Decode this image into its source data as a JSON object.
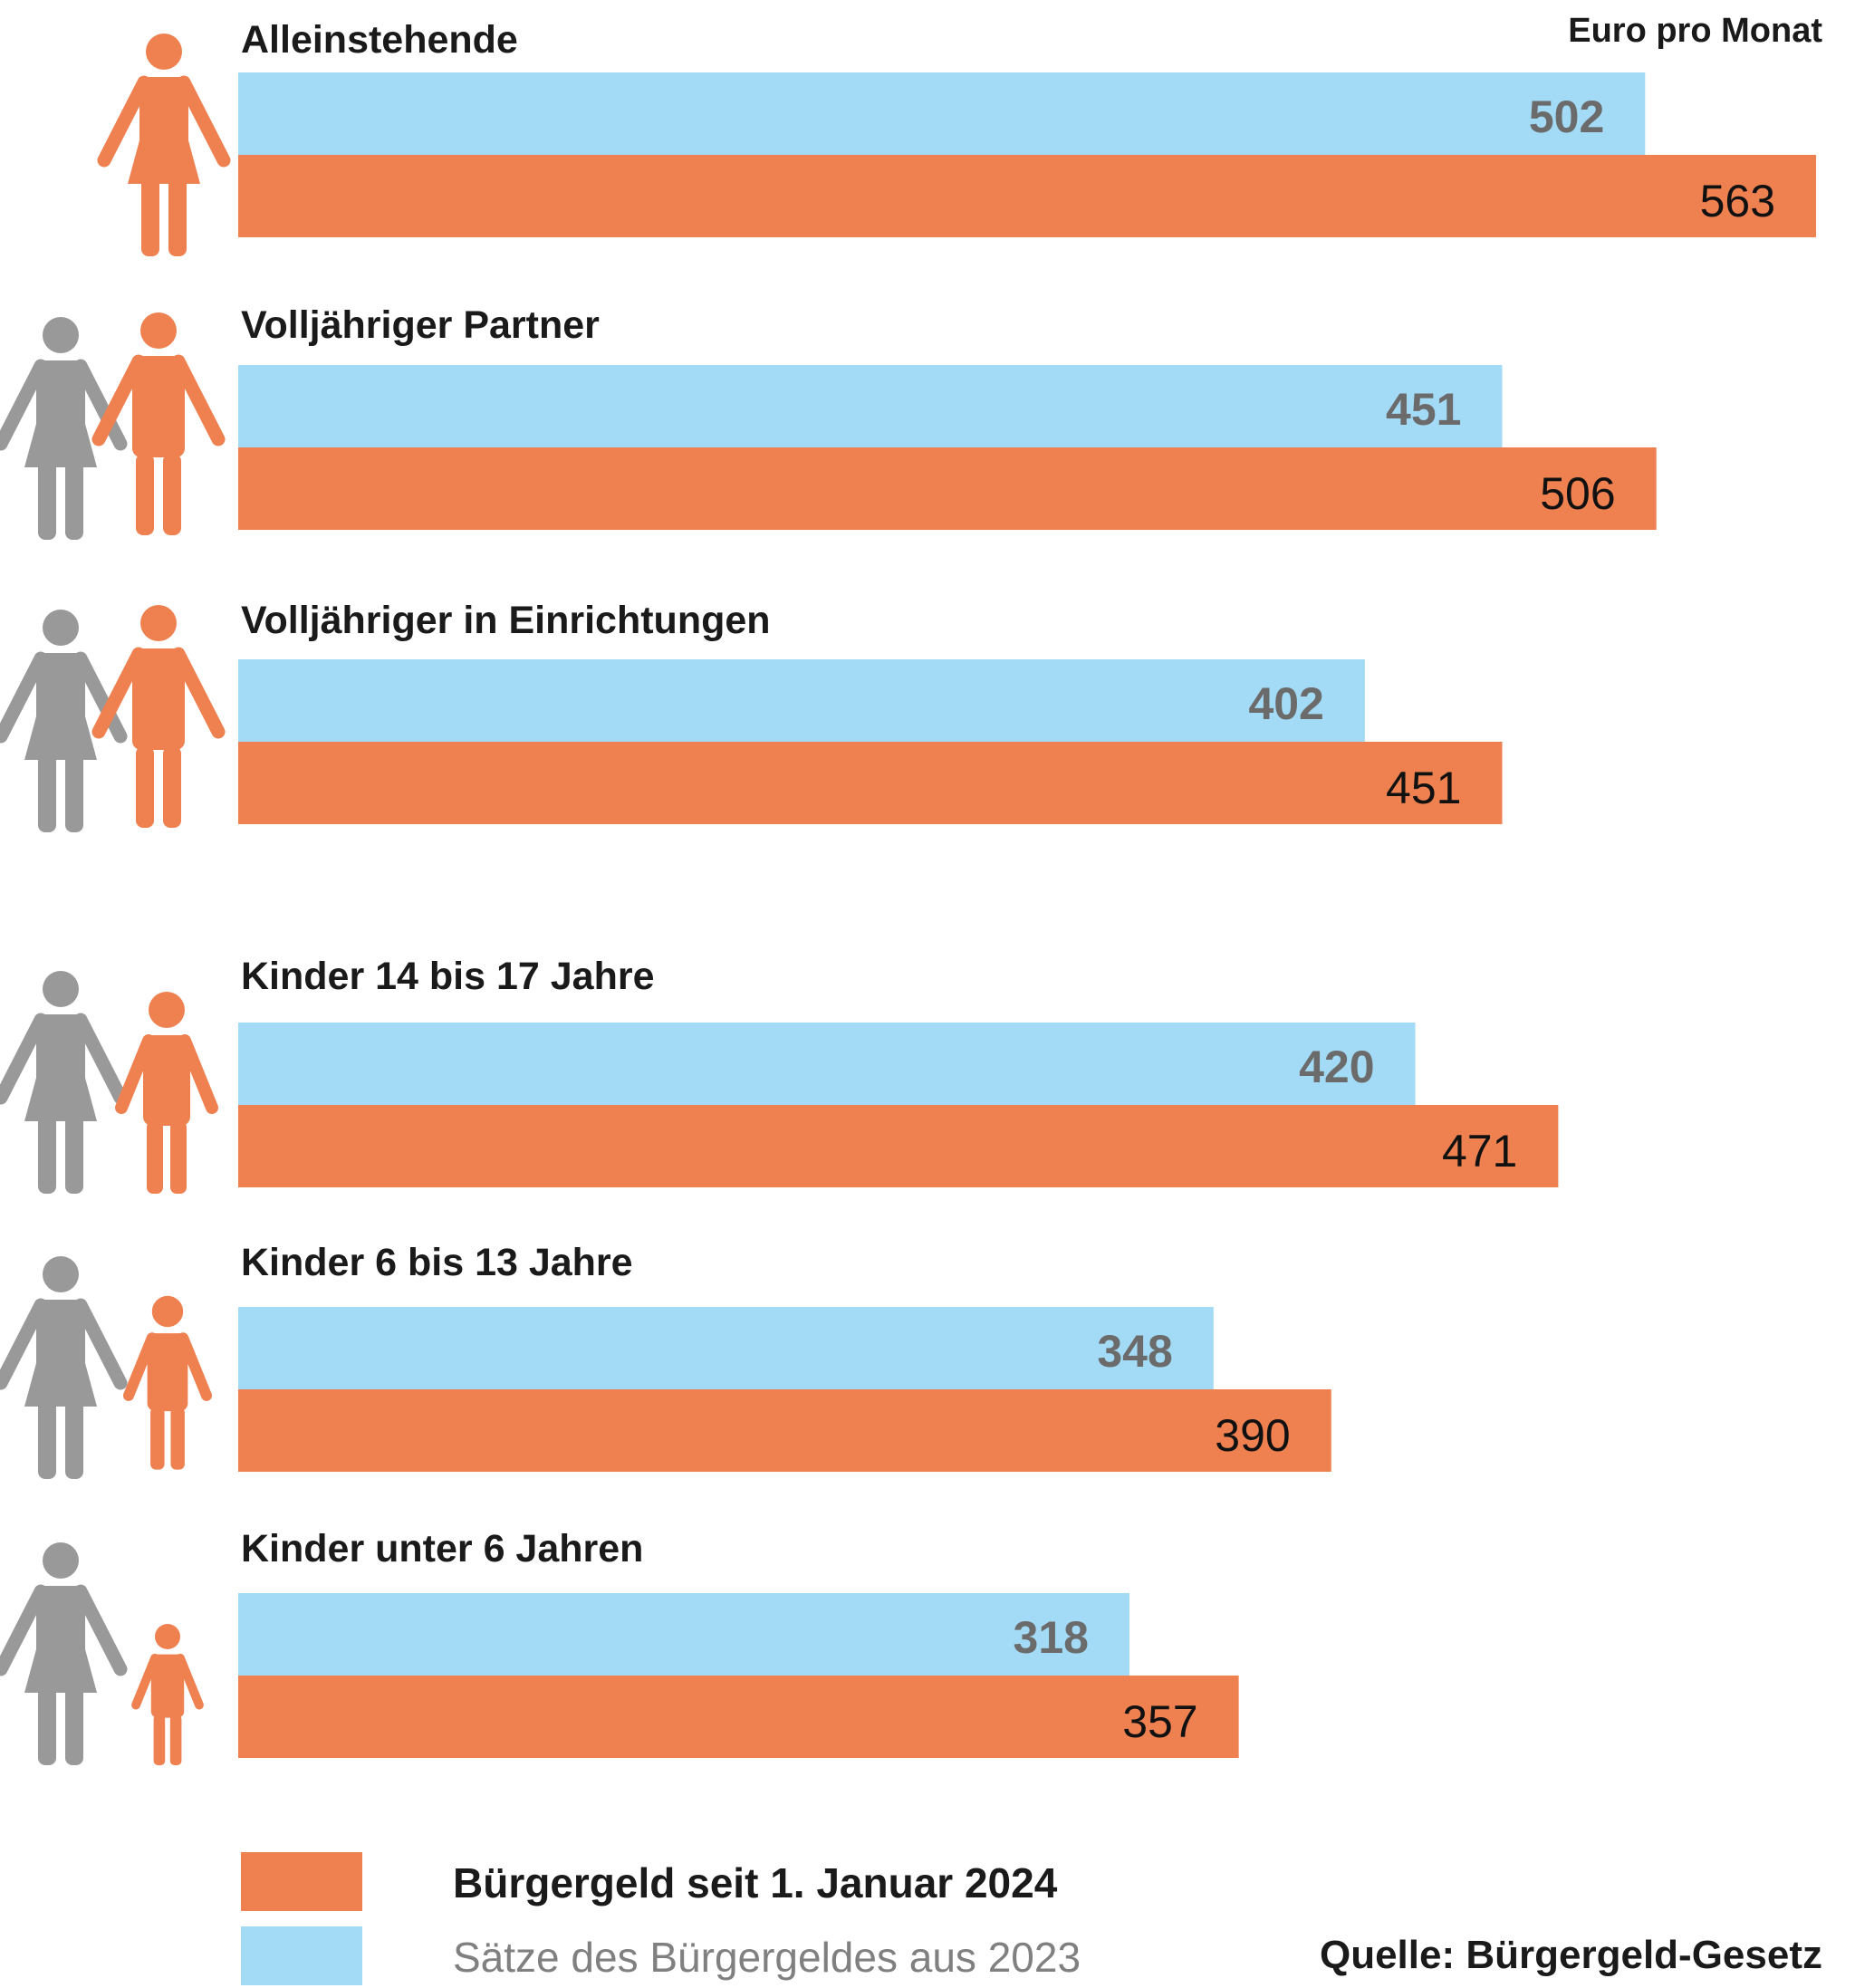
{
  "chart_data": {
    "type": "bar",
    "orientation": "horizontal",
    "unit_label": "Euro pro Monat",
    "categories": [
      "Alleinstehende",
      "Volljähriger Partner",
      "Volljähriger in Einrichtungen",
      "Kinder 14 bis 17 Jahre",
      "Kinder 6 bis 13 Jahre",
      "Kinder unter 6 Jahren"
    ],
    "series": [
      {
        "name": "Sätze des Bürgergeldes aus 2023",
        "color": "#a3daf5",
        "values": [
          502,
          451,
          402,
          420,
          348,
          318
        ]
      },
      {
        "name": "Bürgergeld seit 1. Januar 2024",
        "color": "#ef8150",
        "values": [
          563,
          506,
          451,
          471,
          390,
          357
        ]
      }
    ],
    "legend": [
      {
        "label": "Bürgergeld seit 1. Januar 2024",
        "color": "#ef8150"
      },
      {
        "label": "Sätze des Bürgergeldes aus 2023",
        "color": "#a3daf5"
      }
    ],
    "source": "Quelle: Bürgergeld-Gesetz",
    "icons": [
      "woman-icon",
      "couple-icon",
      "couple-icon",
      "parent-teen-icon",
      "parent-child-icon",
      "parent-toddler-icon"
    ],
    "colors": {
      "person_primary": "#ef8150",
      "person_secondary": "#999999"
    }
  }
}
